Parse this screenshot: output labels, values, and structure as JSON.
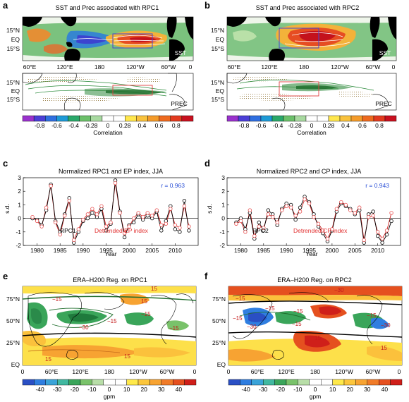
{
  "panels": {
    "a": {
      "label": "a",
      "title": "SST and Prec associated with RPC1",
      "map_top_label": "SST",
      "map_bottom_label": "PREC",
      "lon_ticks": [
        "60°E",
        "120°E",
        "180",
        "120°W",
        "60°W",
        "0"
      ],
      "lat_ticks": [
        "15°N",
        "EQ",
        "15°S"
      ]
    },
    "b": {
      "label": "b",
      "title": "SST and Prec associated with RPC2",
      "map_top_label": "SST",
      "map_bottom_label": "PREC",
      "lon_ticks": [
        "60°E",
        "120°E",
        "180",
        "120°W",
        "60°W",
        "0"
      ],
      "lat_ticks": [
        "15°N",
        "EQ",
        "15°S"
      ]
    },
    "colorbar_corr": {
      "ticks": [
        "-0.8",
        "-0.6",
        "-0.4",
        "-0.28",
        "0",
        "0.28",
        "0.4",
        "0.6",
        "0.8"
      ],
      "label": "Correlation",
      "colors": [
        "#9a32cd",
        "#4b3fd6",
        "#2f6fe0",
        "#1e9ad6",
        "#2aa86a",
        "#6cc06a",
        "#a8d9a0",
        "#ffffff",
        "#ffffff",
        "#ffe74d",
        "#f9c23c",
        "#f49b2a",
        "#ee6a1f",
        "#e23a1f",
        "#c8101f"
      ]
    },
    "c": {
      "label": "c",
      "title": "Normalized RPC1 and EP index, JJA",
      "r_text": "r = 0.963",
      "series_label_1": "RPC1",
      "series_label_2": "Detrended EP index",
      "xlabel": "Year",
      "ylabel": "s.d."
    },
    "d": {
      "label": "d",
      "title": "Normalized RPC2 and CP index, JJA",
      "r_text": "r = 0.943",
      "series_label_1": "RPC2",
      "series_label_2": "Detrended CP index",
      "xlabel": "Year",
      "ylabel": "s.d."
    },
    "e": {
      "label": "e",
      "title": "ERA–H200 Reg. on RPC1",
      "lon_ticks": [
        "0",
        "60°E",
        "120°E",
        "180",
        "120°W",
        "60°W",
        "0"
      ],
      "lat_ticks": [
        "75°N",
        "50°N",
        "25°N",
        "EQ"
      ],
      "contour_labels": [
        "15",
        "−15",
        "−30",
        "−15",
        "−15",
        "15",
        "−15",
        "15",
        "15"
      ]
    },
    "f": {
      "label": "f",
      "title": "ERA–H200 Reg. on RPC2",
      "lon_ticks": [
        "0",
        "60°E",
        "120°E",
        "180",
        "120°W",
        "60°W",
        "0"
      ],
      "lat_ticks": [
        "75°N",
        "50°N",
        "25°N",
        "EQ"
      ],
      "contour_labels": [
        "−15",
        "−30",
        "−15",
        "−15",
        "−15",
        "−15",
        "−30",
        "15",
        "−15",
        "−30",
        "15"
      ]
    },
    "colorbar_gpm": {
      "ticks": [
        "-40",
        "-30",
        "-20",
        "-10",
        "0",
        "10",
        "20",
        "30",
        "40"
      ],
      "label": "gpm",
      "colors": [
        "#2a4fc4",
        "#2f7ee0",
        "#3aa3d8",
        "#41b8a0",
        "#3aa55a",
        "#79c26a",
        "#b8dea8",
        "#ffffff",
        "#ffffff",
        "#ffe94a",
        "#fcc63c",
        "#f7a332",
        "#f07b28",
        "#e5501f",
        "#cf1f1a"
      ]
    }
  },
  "chart_data": [
    {
      "type": "line",
      "panel": "c",
      "title": "Normalized RPC1 and EP index, JJA",
      "xlabel": "Year",
      "ylabel": "s.d.",
      "xlim": [
        1977,
        2015
      ],
      "ylim": [
        -2,
        3
      ],
      "x_ticks": [
        1980,
        1985,
        1990,
        1995,
        2000,
        2005,
        2010
      ],
      "y_ticks": [
        -2,
        -1,
        0,
        1,
        2,
        3
      ],
      "annotation": "r = 0.963",
      "x": [
        1979,
        1980,
        1981,
        1982,
        1983,
        1984,
        1985,
        1986,
        1987,
        1988,
        1989,
        1990,
        1991,
        1992,
        1993,
        1994,
        1995,
        1996,
        1997,
        1998,
        1999,
        2000,
        2001,
        2002,
        2003,
        2004,
        2005,
        2006,
        2007,
        2008,
        2009,
        2010,
        2011,
        2012,
        2013
      ],
      "series": [
        {
          "name": "RPC1",
          "values": [
            0.0,
            -0.1,
            -0.5,
            0.6,
            2.5,
            -0.2,
            -1.0,
            0.3,
            1.5,
            -1.8,
            -1.0,
            -0.2,
            0.0,
            0.4,
            0.1,
            0.7,
            -0.9,
            -0.4,
            2.8,
            0.5,
            -1.4,
            -0.5,
            -0.3,
            0.3,
            -0.1,
            0.2,
            0.0,
            0.5,
            -0.9,
            -0.2,
            0.9,
            -0.8,
            -1.0,
            1.3,
            -0.9
          ]
        },
        {
          "name": "Detrended EP index",
          "values": [
            0.1,
            -0.2,
            -0.6,
            0.8,
            2.4,
            -0.3,
            -1.2,
            0.2,
            1.3,
            -1.6,
            -0.8,
            -0.1,
            0.3,
            0.7,
            0.3,
            0.9,
            -0.6,
            -0.3,
            2.6,
            0.4,
            -1.1,
            -0.6,
            0.0,
            0.4,
            0.1,
            0.4,
            0.2,
            0.6,
            -0.5,
            -0.4,
            0.7,
            -0.5,
            -0.7,
            0.9,
            -0.6
          ]
        }
      ]
    },
    {
      "type": "line",
      "panel": "d",
      "title": "Normalized RPC2 and CP index, JJA",
      "xlabel": "Year",
      "ylabel": "s.d.",
      "xlim": [
        1977,
        2015
      ],
      "ylim": [
        -2,
        3
      ],
      "x_ticks": [
        1980,
        1985,
        1990,
        1995,
        2000,
        2005,
        2010
      ],
      "y_ticks": [
        -2,
        -1,
        0,
        1,
        2,
        3
      ],
      "annotation": "r = 0.943",
      "x": [
        1979,
        1980,
        1981,
        1982,
        1983,
        1984,
        1985,
        1986,
        1987,
        1988,
        1989,
        1990,
        1991,
        1992,
        1993,
        1994,
        1995,
        1996,
        1997,
        1998,
        1999,
        2000,
        2001,
        2002,
        2003,
        2004,
        2005,
        2006,
        2007,
        2008,
        2009,
        2010,
        2011,
        2012,
        2013
      ],
      "series": [
        {
          "name": "RPC2",
          "values": [
            -0.3,
            0.0,
            -0.8,
            0.4,
            -1.5,
            -0.3,
            -0.9,
            0.6,
            0.3,
            -0.5,
            0.7,
            1.1,
            1.0,
            -0.1,
            0.8,
            1.6,
            1.2,
            0.3,
            -0.6,
            -1.1,
            -1.7,
            -0.9,
            0.5,
            1.1,
            0.9,
            0.7,
            0.3,
            0.6,
            -1.8,
            0.3,
            0.5,
            -1.3,
            -1.8,
            -1.2,
            -0.2
          ]
        },
        {
          "name": "Detrended CP index",
          "values": [
            -0.4,
            -0.2,
            -1.0,
            0.6,
            -1.3,
            -0.6,
            -0.7,
            0.3,
            0.1,
            -0.3,
            0.6,
            0.9,
            0.8,
            0.2,
            0.5,
            1.4,
            1.1,
            0.1,
            -0.4,
            -0.9,
            -1.5,
            -0.8,
            0.7,
            1.2,
            1.0,
            0.6,
            0.4,
            0.8,
            -1.6,
            0.1,
            0.2,
            -1.0,
            -1.5,
            -0.9,
            0.4
          ]
        }
      ]
    }
  ]
}
